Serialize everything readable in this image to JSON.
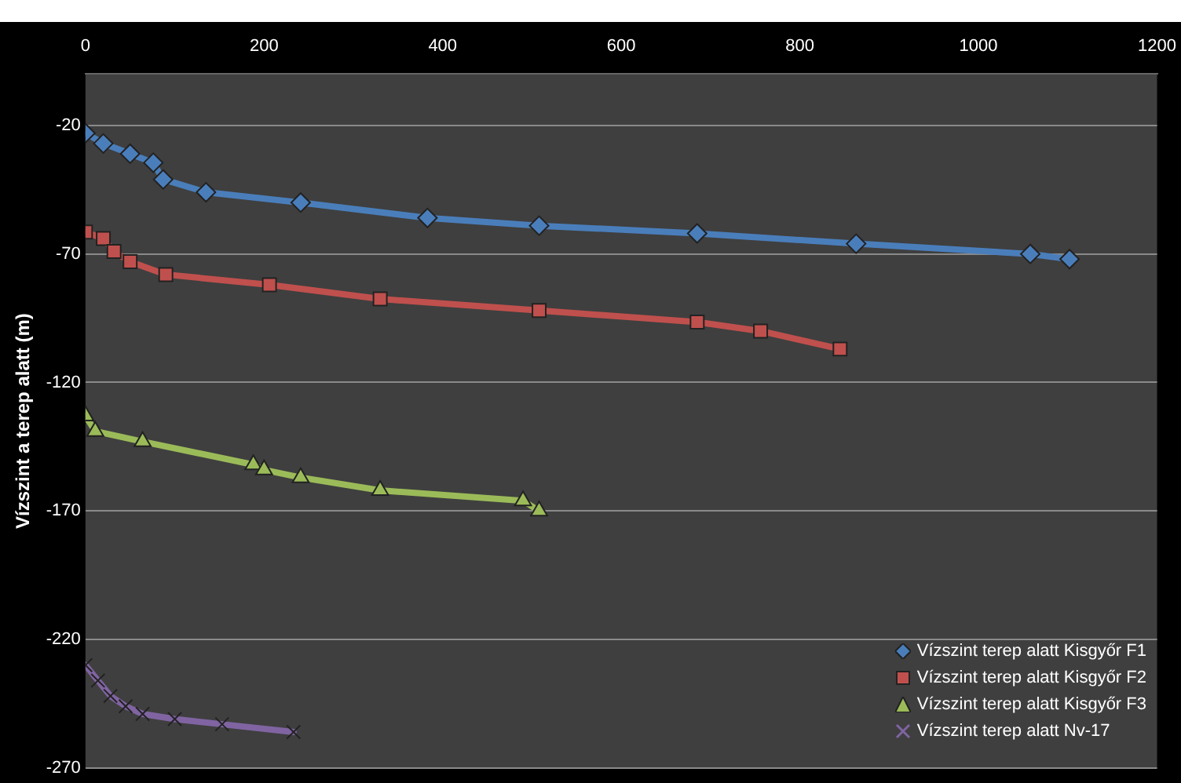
{
  "chart_data": {
    "type": "line",
    "ylabel": "Vízszint a terep alatt (m)",
    "xlim": [
      0,
      1200
    ],
    "xticks": [
      0,
      200,
      400,
      600,
      800,
      1000,
      1200
    ],
    "ylim": [
      -270,
      0
    ],
    "yticks": [
      -270,
      -220,
      -170,
      -120,
      -70,
      -20
    ],
    "grid": "y",
    "legend": "bottom right",
    "series": [
      {
        "name": "Vízszint terep alatt Kisgyőr F1",
        "color": "#4a7ebb",
        "marker": "diamond",
        "x": [
          0,
          20,
          50,
          76,
          87,
          135,
          241,
          383,
          508,
          685,
          863,
          1058,
          1102
        ],
        "values": [
          -23,
          -27,
          -31,
          -34.5,
          -41,
          -46,
          -50,
          -56,
          -59,
          -62,
          -66,
          -70,
          -72
        ]
      },
      {
        "name": "Vízszint terep alatt Kisgyőr F2",
        "color": "#c0504d",
        "marker": "square",
        "x": [
          0,
          20,
          32,
          50,
          90,
          206,
          330,
          508,
          685,
          756,
          845
        ],
        "values": [
          -61.5,
          -64,
          -69,
          -73,
          -78,
          -82,
          -87.5,
          -92,
          -96.5,
          -100,
          -107
        ]
      },
      {
        "name": "Vízszint terep alatt Kisgyőr F3",
        "color": "#9bbb59",
        "marker": "triangle",
        "x": [
          0,
          11,
          64,
          188,
          200,
          241,
          330,
          490,
          508
        ],
        "values": [
          -133,
          -139,
          -143,
          -152,
          -154,
          -157,
          -162,
          -166,
          -170
        ]
      },
      {
        "name": "Vízszint terep alatt Nv-17",
        "color": "#8064a2",
        "marker": "cross",
        "x": [
          0,
          14,
          28,
          45,
          64,
          100,
          153,
          233
        ],
        "values": [
          -230,
          -236,
          -242,
          -246,
          -249,
          -251,
          -253,
          -256
        ]
      }
    ]
  }
}
